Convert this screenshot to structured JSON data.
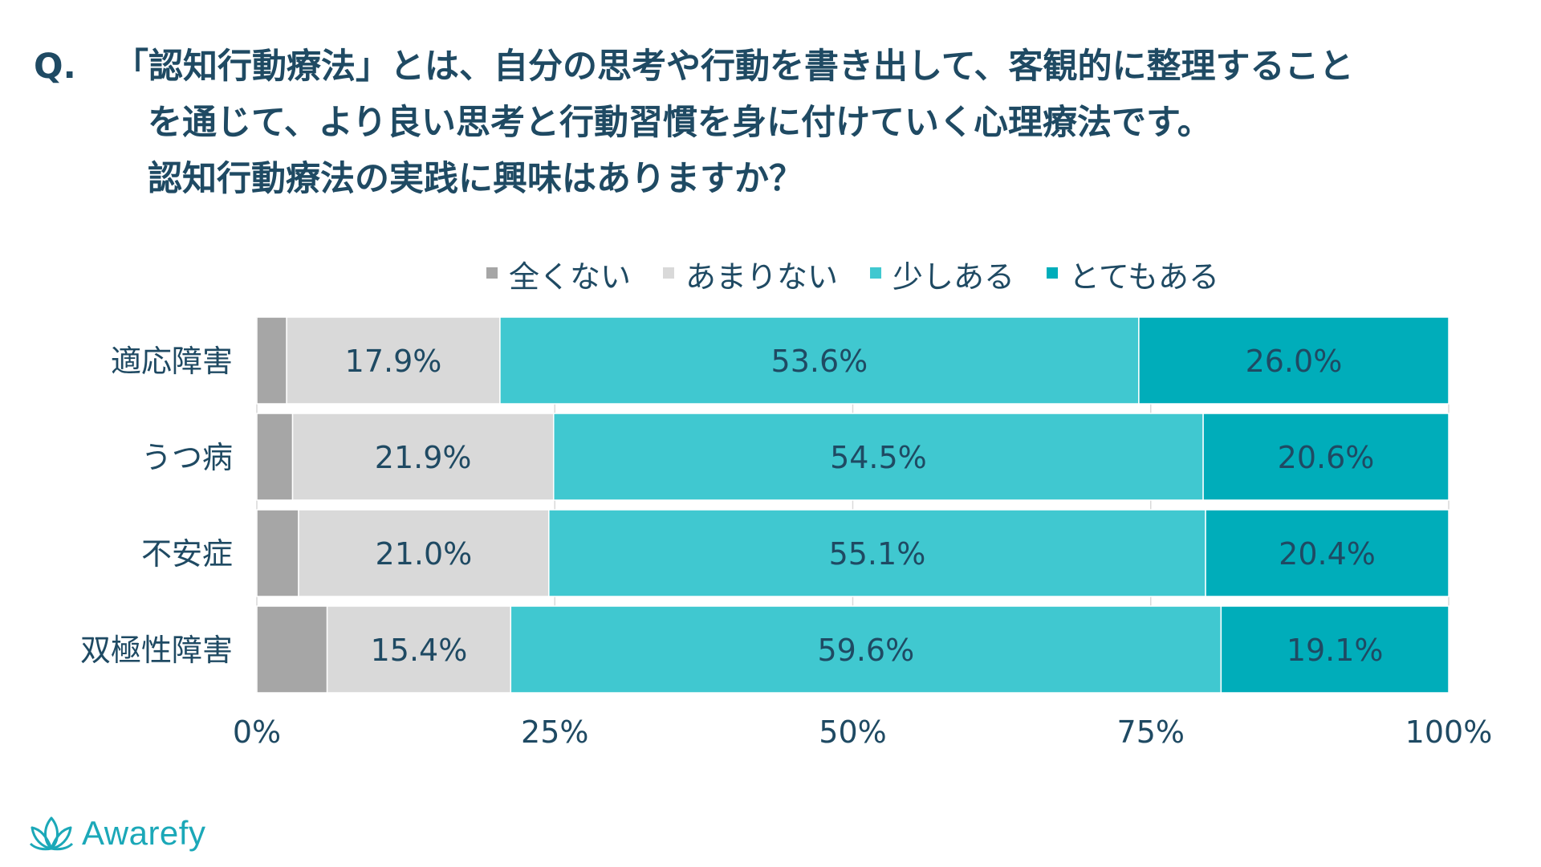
{
  "question": {
    "prefix": "Q.",
    "lines": [
      "「認知行動療法」とは、自分の思考や行動を書き出して、客観的に整理すること",
      "を通じて、より良い思考と行動習慣を身に付けていく心理療法です。",
      "認知行動療法の実践に興味はありますか？"
    ]
  },
  "chart_data": {
    "type": "bar",
    "orientation": "horizontal",
    "stacked": true,
    "categories": [
      "適応障害",
      "うつ病",
      "不安症",
      "双極性障害"
    ],
    "series": [
      {
        "name": "全くない",
        "color": "#a6a6a6",
        "values": [
          2.5,
          3.0,
          3.5,
          5.9
        ],
        "labels": [
          "",
          "",
          "",
          ""
        ]
      },
      {
        "name": "あまりない",
        "color": "#d9d9d9",
        "values": [
          17.9,
          21.9,
          21.0,
          15.4
        ],
        "labels": [
          "17.9%",
          "21.9%",
          "21.0%",
          "15.4%"
        ]
      },
      {
        "name": "少しある",
        "color": "#40c8d0",
        "values": [
          53.6,
          54.5,
          55.1,
          59.6
        ],
        "labels": [
          "53.6%",
          "54.5%",
          "55.1%",
          "59.6%"
        ]
      },
      {
        "name": "とてもある",
        "color": "#00adba",
        "values": [
          26.0,
          20.6,
          20.4,
          19.1
        ],
        "labels": [
          "26.0%",
          "20.6%",
          "20.4%",
          "19.1%"
        ]
      }
    ],
    "xlim": [
      0,
      100
    ],
    "xticks": [
      0,
      25,
      50,
      75,
      100
    ],
    "xtick_labels": [
      "0%",
      "25%",
      "50%",
      "75%",
      "100%"
    ],
    "grid": true,
    "legend": "top-center"
  },
  "brand": {
    "name": "Awarefy",
    "color": "#1ba8b8",
    "icon": "lotus-icon"
  }
}
